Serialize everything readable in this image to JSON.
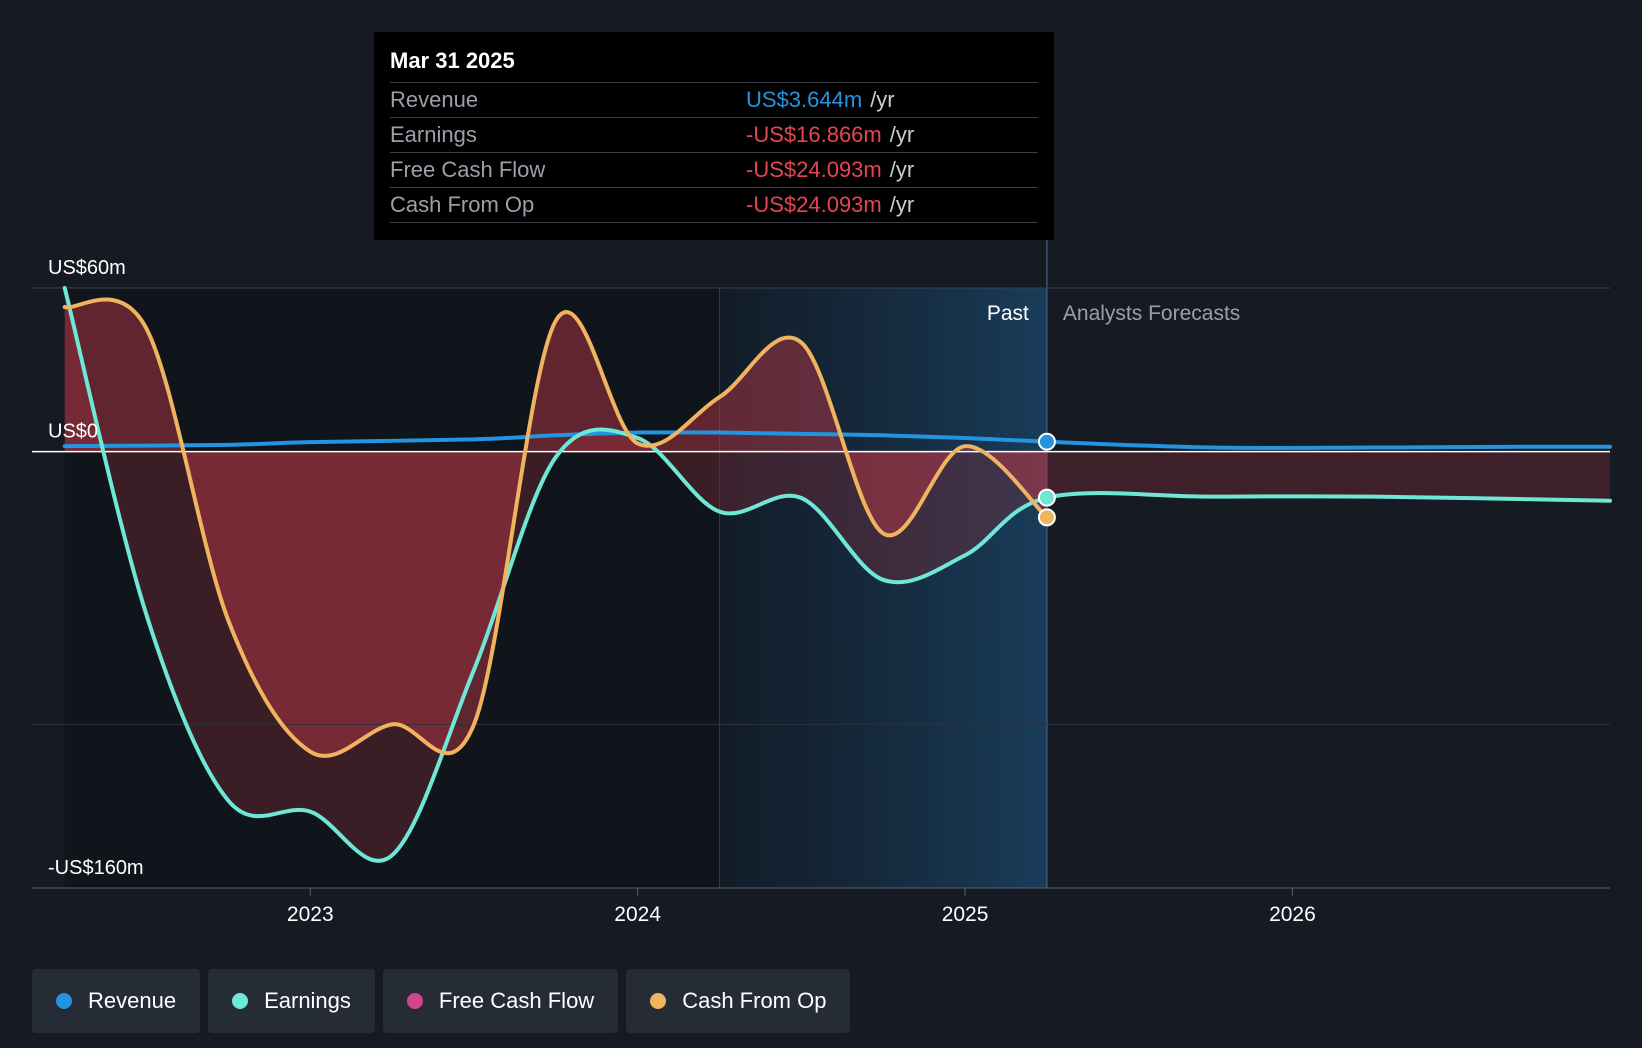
{
  "tooltip": {
    "date": "Mar 31 2025",
    "rows": [
      {
        "label": "Revenue",
        "value": "US$3.644m",
        "unit": "/yr",
        "color": "#2394df"
      },
      {
        "label": "Earnings",
        "value": "-US$16.866m",
        "unit": "/yr",
        "color": "#e64552"
      },
      {
        "label": "Free Cash Flow",
        "value": "-US$24.093m",
        "unit": "/yr",
        "color": "#e64552"
      },
      {
        "label": "Cash From Op",
        "value": "-US$24.093m",
        "unit": "/yr",
        "color": "#e64552"
      }
    ]
  },
  "regions": {
    "past": "Past",
    "forecast": "Analysts Forecasts"
  },
  "legend": [
    {
      "label": "Revenue",
      "color": "#2394df"
    },
    {
      "label": "Earnings",
      "color": "#6ee7d7"
    },
    {
      "label": "Free Cash Flow",
      "color": "#d1468a"
    },
    {
      "label": "Cash From Op",
      "color": "#f0b461"
    }
  ],
  "chart_data": {
    "type": "line",
    "ylim": [
      -160,
      60
    ],
    "y_tick_labels": [
      {
        "value": 60,
        "label": "US$60m"
      },
      {
        "value": 0,
        "label": "US$0"
      },
      {
        "value": -160,
        "label": "-US$160m"
      }
    ],
    "x_range": [
      2022.15,
      2026.97
    ],
    "x_ticks": [
      2023,
      2024,
      2025,
      2026
    ],
    "x_tick_labels": [
      "2023",
      "2024",
      "2025",
      "2026"
    ],
    "highlight_start": 2024.25,
    "past_end": 2025.25,
    "grid": true,
    "series": [
      {
        "name": "Revenue",
        "color": "#2394df",
        "points": [
          [
            2022.25,
            2
          ],
          [
            2022.75,
            2.5
          ],
          [
            2023.0,
            3.5
          ],
          [
            2023.5,
            4.5
          ],
          [
            2023.75,
            6
          ],
          [
            2024.0,
            7
          ],
          [
            2024.25,
            7
          ],
          [
            2024.5,
            6.5
          ],
          [
            2024.75,
            6
          ],
          [
            2025.0,
            5
          ],
          [
            2025.25,
            3.644
          ],
          [
            2025.75,
            1.5
          ],
          [
            2026.25,
            1.5
          ],
          [
            2026.75,
            1.8
          ],
          [
            2026.97,
            1.8
          ]
        ]
      },
      {
        "name": "Earnings",
        "color": "#6ee7d7",
        "points": [
          [
            2022.25,
            60
          ],
          [
            2022.5,
            -60
          ],
          [
            2022.75,
            -128
          ],
          [
            2023.0,
            -132
          ],
          [
            2023.25,
            -148
          ],
          [
            2023.5,
            -80
          ],
          [
            2023.75,
            -2
          ],
          [
            2024.0,
            5
          ],
          [
            2024.25,
            -22
          ],
          [
            2024.5,
            -17
          ],
          [
            2024.75,
            -47
          ],
          [
            2025.0,
            -38
          ],
          [
            2025.25,
            -16.866
          ],
          [
            2025.75,
            -16.5
          ],
          [
            2026.25,
            -16.5
          ],
          [
            2026.97,
            -18
          ]
        ]
      },
      {
        "name": "Free Cash Flow",
        "color": "#d1468a",
        "points": [
          [
            2022.25,
            53
          ],
          [
            2022.5,
            45
          ],
          [
            2022.75,
            -62
          ],
          [
            2023.0,
            -110
          ],
          [
            2023.25,
            -100
          ],
          [
            2023.5,
            -100
          ],
          [
            2023.75,
            48
          ],
          [
            2024.0,
            3
          ],
          [
            2024.25,
            20
          ],
          [
            2024.5,
            40
          ],
          [
            2024.75,
            -30
          ],
          [
            2025.0,
            2
          ],
          [
            2025.25,
            -24.093
          ]
        ]
      },
      {
        "name": "Cash From Op",
        "color": "#f0b461",
        "points": [
          [
            2022.25,
            53
          ],
          [
            2022.5,
            45
          ],
          [
            2022.75,
            -62
          ],
          [
            2023.0,
            -110
          ],
          [
            2023.25,
            -100
          ],
          [
            2023.5,
            -100
          ],
          [
            2023.75,
            48
          ],
          [
            2024.0,
            3
          ],
          [
            2024.25,
            20
          ],
          [
            2024.5,
            40
          ],
          [
            2024.75,
            -30
          ],
          [
            2025.0,
            2
          ],
          [
            2025.25,
            -24.093
          ]
        ]
      }
    ]
  }
}
